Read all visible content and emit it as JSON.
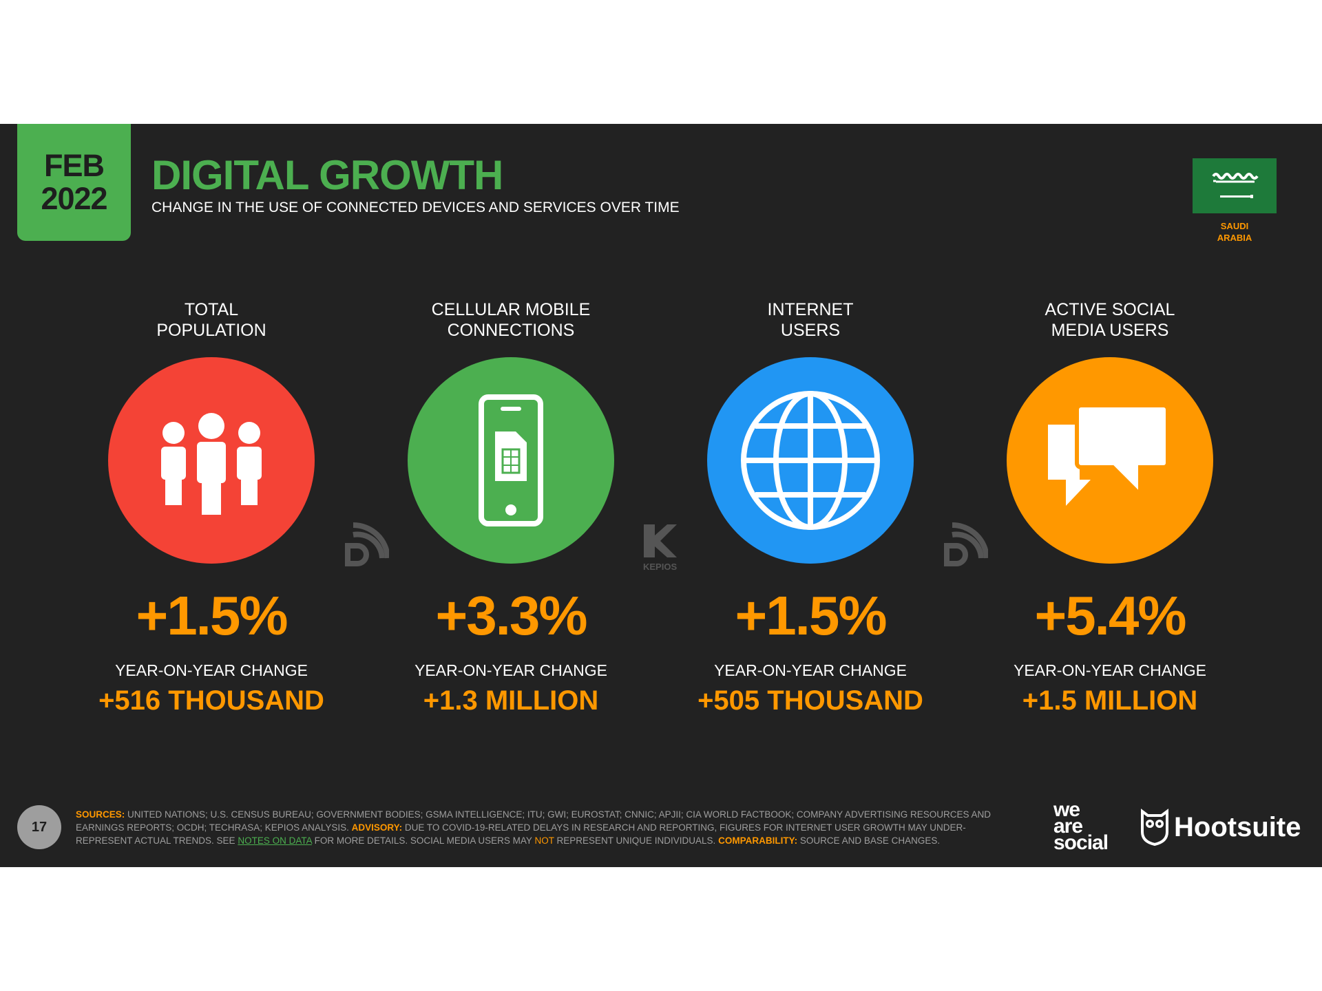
{
  "header": {
    "month": "FEB",
    "year": "2022",
    "title": "DIGITAL GROWTH",
    "subtitle": "CHANGE IN THE USE OF CONNECTED DEVICES AND SERVICES OVER TIME",
    "country_line1": "SAUDI",
    "country_line2": "ARABIA"
  },
  "colors": {
    "accent_green": "#4caf50",
    "accent_orange": "#ff9800",
    "red": "#f44336",
    "blue": "#2196f3",
    "background": "#222222"
  },
  "metrics": [
    {
      "label_line1": "TOTAL",
      "label_line2": "POPULATION",
      "icon": "people-icon",
      "color": "#f44336",
      "percent": "+1.5%",
      "yoy_label": "YEAR-ON-YEAR CHANGE",
      "absolute": "+516 THOUSAND"
    },
    {
      "label_line1": "CELLULAR MOBILE",
      "label_line2": "CONNECTIONS",
      "icon": "mobile-sim-icon",
      "color": "#4caf50",
      "percent": "+3.3%",
      "yoy_label": "YEAR-ON-YEAR CHANGE",
      "absolute": "+1.3 MILLION"
    },
    {
      "label_line1": "INTERNET",
      "label_line2": "USERS",
      "icon": "globe-icon",
      "color": "#2196f3",
      "percent": "+1.5%",
      "yoy_label": "YEAR-ON-YEAR CHANGE",
      "absolute": "+505 THOUSAND"
    },
    {
      "label_line1": "ACTIVE SOCIAL",
      "label_line2": "MEDIA USERS",
      "icon": "speech-bubbles-icon",
      "color": "#ff9800",
      "percent": "+5.4%",
      "yoy_label": "YEAR-ON-YEAR CHANGE",
      "absolute": "+1.5 MILLION"
    }
  ],
  "footer": {
    "page_number": "17",
    "sources_label": "SOURCES:",
    "sources_text": "UNITED NATIONS; U.S. CENSUS BUREAU; GOVERNMENT BODIES; GSMA INTELLIGENCE; ITU; GWI; EUROSTAT; CNNIC; APJII; CIA WORLD FACTBOOK; COMPANY ADVERTISING RESOURCES AND EARNINGS REPORTS; OCDH; TECHRASA; KEPIOS ANALYSIS.",
    "advisory_label": "ADVISORY:",
    "advisory_text": "DUE TO COVID-19-RELATED DELAYS IN RESEARCH AND REPORTING, FIGURES FOR INTERNET USER GROWTH MAY UNDER-REPRESENT ACTUAL TRENDS. SEE",
    "notes_link": "NOTES ON DATA",
    "advisory_text2": "FOR MORE DETAILS. SOCIAL MEDIA USERS MAY",
    "not_word": "NOT",
    "advisory_text3": "REPRESENT UNIQUE INDIVIDUALS.",
    "comparability_label": "COMPARABILITY:",
    "comparability_text": "SOURCE AND BASE CHANGES.",
    "was_line1": "we",
    "was_line2": "are",
    "was_line3": "social",
    "hootsuite": "Hootsuite",
    "kepios": "KEPIOS"
  }
}
